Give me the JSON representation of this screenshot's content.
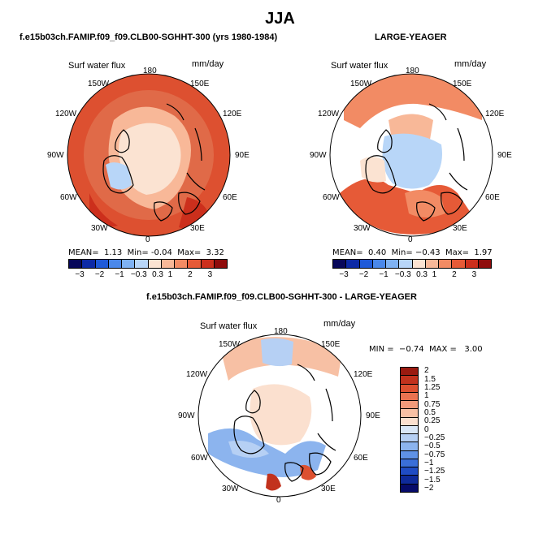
{
  "title": "JJA",
  "panels": [
    {
      "heading": "f.e15b03ch.FAMIP.f09_f09.CLB00-SGHHT-300 (yrs 1980-1984)",
      "var_label": "Surf water flux",
      "units": "mm/day",
      "lon_labels": {
        "n": "180",
        "nne": "150E",
        "ene": "120E",
        "e": "90E",
        "ese": "60E",
        "sse": "30E",
        "s": "0",
        "ssw": "30W",
        "wsw": "60W",
        "w": "90W",
        "wnw": "120W",
        "nnw": "150W"
      },
      "stats": {
        "mean_label": "MEAN=",
        "mean": "1.13",
        "min_label": "Min=",
        "min": "-0.04",
        "max_label": "Max=",
        "max": "3.32"
      },
      "colorbar_ticks": [
        "−3",
        "−2",
        "−1",
        "−0.3",
        "0.3",
        "1",
        "2",
        "3"
      ]
    },
    {
      "heading": "LARGE-YEAGER",
      "var_label": "Surf water flux",
      "units": "mm/day",
      "lon_labels": {
        "n": "180",
        "nne": "150E",
        "ene": "120E",
        "e": "90E",
        "ese": "60E",
        "sse": "30E",
        "s": "0",
        "ssw": "30W",
        "wsw": "60W",
        "w": "90W",
        "wnw": "120W",
        "nnw": "150W"
      },
      "stats": {
        "mean_label": "MEAN=",
        "mean": "0.40",
        "min_label": "Min=",
        "min": "−0.43",
        "max_label": "Max=",
        "max": "1.97"
      },
      "colorbar_ticks": [
        "−3",
        "−2",
        "−1",
        "−0.3",
        "0.3",
        "1",
        "2",
        "3"
      ]
    },
    {
      "heading": "f.e15b03ch.FAMIP.f09_f09.CLB00-SGHHT-300 - LARGE-YEAGER",
      "var_label": "Surf water flux",
      "units": "mm/day",
      "lon_labels": {
        "n": "180",
        "nne": "150E",
        "ene": "120E",
        "e": "90E",
        "ese": "60E",
        "sse": "30E",
        "s": "0",
        "ssw": "30W",
        "wsw": "60W",
        "w": "90W",
        "wnw": "120W",
        "nnw": "150W"
      },
      "minmax": "MIN =  −0.74  MAX =   3.00",
      "colorbar_ticks": [
        "2",
        "1.5",
        "1.25",
        "1",
        "0.75",
        "0.5",
        "0.25",
        "0",
        "−0.25",
        "−0.5",
        "−0.75",
        "−1",
        "−1.25",
        "−1.5",
        "−2"
      ]
    }
  ],
  "colors": {
    "seq": [
      "#08085a",
      "#0d2aa6",
      "#1f5ad8",
      "#4a88ea",
      "#7fb2f3",
      "#b8d6f8",
      "#fbe3d2",
      "#f8b898",
      "#f28b64",
      "#e65a37",
      "#cc2f1c",
      "#8f0c0c"
    ],
    "div": [
      "#9a1a10",
      "#c2321d",
      "#dd5030",
      "#ea7250",
      "#f29a7a",
      "#f7c0a4",
      "#fbe0cf",
      "#d9e7f7",
      "#b6d0f4",
      "#8cb4ee",
      "#5f92e6",
      "#3a6fd9",
      "#1f4cc4",
      "#0e2a9a",
      "#060b6a"
    ],
    "land": "#ffffff",
    "coast": "#000000"
  }
}
